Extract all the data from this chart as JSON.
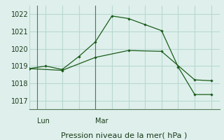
{
  "line1_x": [
    0,
    1,
    2,
    3,
    4,
    5,
    6,
    7,
    8,
    9,
    10,
    11
  ],
  "line1_y": [
    1018.85,
    1019.0,
    1018.8,
    1019.55,
    1020.4,
    1021.9,
    1021.75,
    1021.4,
    1021.05,
    1018.95,
    1017.35,
    1017.35
  ],
  "line2_x": [
    0,
    2,
    4,
    6,
    8,
    10,
    11
  ],
  "line2_y": [
    1018.85,
    1018.75,
    1019.5,
    1019.9,
    1019.85,
    1018.2,
    1018.15
  ],
  "lun_x": 0.5,
  "mar_x": 4.0,
  "yticks": [
    1017,
    1018,
    1019,
    1020,
    1021,
    1022
  ],
  "ylim": [
    1016.5,
    1022.5
  ],
  "xlim": [
    0,
    11.5
  ],
  "grid_color": "#b8d8d0",
  "line_color": "#1a5c1a",
  "bg_color": "#dff0ec",
  "xlabel": "Pression niveau de la mer( hPa )",
  "lun_label": "Lun",
  "mar_label": "Mar",
  "tick_fontsize": 7,
  "label_fontsize": 8,
  "vline_color": "#557755"
}
